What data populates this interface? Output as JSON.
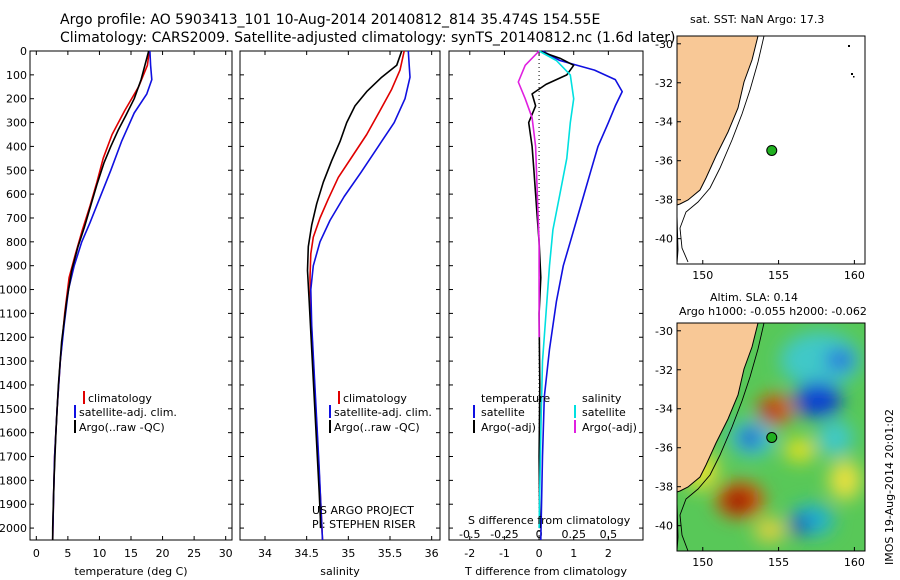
{
  "header": {
    "line1": "Argo profile: AO 5903413_101 10-Aug-2014 20140812_814 35.474S 154.55E",
    "line2": "Climatology: CARS2009. Satellite-adjusted climatology: synTS_20140812.nc (1.6d later)"
  },
  "colors": {
    "climatology": "#e00000",
    "satellite": "#1010e0",
    "argo": "#000000",
    "s_sat": "#00e0e0",
    "s_argo": "#e020e0",
    "land": "#f8c896",
    "argo_dot": "#20b020"
  },
  "depth_ticks": [
    "0",
    "100",
    "200",
    "300",
    "400",
    "500",
    "600",
    "700",
    "800",
    "900",
    "1000",
    "1100",
    "1200",
    "1300",
    "1400",
    "1500",
    "1600",
    "1700",
    "1800",
    "1900",
    "2000"
  ],
  "chart_data": [
    {
      "type": "line",
      "xlabel": "temperature (deg C)",
      "ylim": [
        2050,
        0
      ],
      "xlim": [
        -1,
        31
      ],
      "xticks": [
        "0",
        "5",
        "10",
        "15",
        "20",
        "25",
        "30"
      ],
      "legend": [
        "climatology",
        "satellite-adj. clim.",
        "Argo(..raw -QC)"
      ],
      "series": [
        {
          "name": "climatology",
          "points": [
            [
              17.9,
              0
            ],
            [
              17.6,
              60
            ],
            [
              16.2,
              150
            ],
            [
              14.0,
              250
            ],
            [
              12.0,
              350
            ],
            [
              10.6,
              450
            ],
            [
              9.6,
              550
            ],
            [
              8.5,
              650
            ],
            [
              7.3,
              750
            ],
            [
              6.2,
              850
            ],
            [
              5.2,
              950
            ],
            [
              4.5,
              1100
            ],
            [
              3.8,
              1300
            ],
            [
              3.3,
              1500
            ],
            [
              2.9,
              1700
            ],
            [
              2.7,
              1900
            ],
            [
              2.6,
              2050
            ]
          ]
        },
        {
          "name": "satellite-adj. clim.",
          "points": [
            [
              18.0,
              0
            ],
            [
              18.1,
              60
            ],
            [
              18.3,
              120
            ],
            [
              17.5,
              180
            ],
            [
              15.5,
              260
            ],
            [
              13.5,
              380
            ],
            [
              11.8,
              500
            ],
            [
              10.0,
              620
            ],
            [
              8.5,
              720
            ],
            [
              7.2,
              800
            ],
            [
              6.0,
              900
            ],
            [
              5.1,
              1000
            ],
            [
              4.4,
              1150
            ],
            [
              3.8,
              1300
            ],
            [
              3.3,
              1500
            ],
            [
              2.9,
              1700
            ],
            [
              2.7,
              1900
            ],
            [
              2.6,
              2050
            ]
          ]
        },
        {
          "name": "Argo(..raw -QC)",
          "points": [
            [
              17.8,
              0
            ],
            [
              17.2,
              60
            ],
            [
              16.6,
              120
            ],
            [
              15.5,
              200
            ],
            [
              14.2,
              270
            ],
            [
              13.0,
              330
            ],
            [
              11.8,
              400
            ],
            [
              10.7,
              470
            ],
            [
              9.6,
              560
            ],
            [
              8.6,
              650
            ],
            [
              7.6,
              740
            ],
            [
              6.6,
              820
            ],
            [
              5.6,
              920
            ],
            [
              4.8,
              1050
            ],
            [
              4.0,
              1220
            ],
            [
              3.5,
              1400
            ],
            [
              3.1,
              1600
            ],
            [
              2.8,
              1800
            ],
            [
              2.6,
              2000
            ],
            [
              2.6,
              2050
            ]
          ]
        }
      ]
    },
    {
      "type": "line",
      "xlabel": "salinity",
      "ylim": [
        2050,
        0
      ],
      "xlim": [
        33.7,
        36.1
      ],
      "xticks": [
        "34",
        "34.5",
        "35",
        "35.5",
        "36"
      ],
      "legend": [
        "climatology",
        "satellite-adj. clim.",
        "Argo(..raw -QC)"
      ],
      "annotation": [
        "US ARGO PROJECT",
        "PI: STEPHEN RISER"
      ],
      "series": [
        {
          "name": "climatology",
          "points": [
            [
              35.67,
              0
            ],
            [
              35.62,
              80
            ],
            [
              35.52,
              160
            ],
            [
              35.38,
              250
            ],
            [
              35.22,
              350
            ],
            [
              35.05,
              440
            ],
            [
              34.88,
              530
            ],
            [
              34.76,
              620
            ],
            [
              34.66,
              700
            ],
            [
              34.58,
              780
            ],
            [
              34.55,
              850
            ],
            [
              34.54,
              950
            ],
            [
              34.55,
              1100
            ],
            [
              34.58,
              1300
            ],
            [
              34.61,
              1500
            ],
            [
              34.64,
              1700
            ],
            [
              34.67,
              1900
            ],
            [
              34.69,
              2050
            ]
          ]
        },
        {
          "name": "satellite-adj. clim.",
          "points": [
            [
              35.72,
              0
            ],
            [
              35.73,
              60
            ],
            [
              35.74,
              110
            ],
            [
              35.68,
              200
            ],
            [
              35.55,
              300
            ],
            [
              35.36,
              400
            ],
            [
              35.15,
              510
            ],
            [
              34.95,
              610
            ],
            [
              34.78,
              710
            ],
            [
              34.66,
              800
            ],
            [
              34.58,
              900
            ],
            [
              34.55,
              1000
            ],
            [
              34.56,
              1150
            ],
            [
              34.59,
              1350
            ],
            [
              34.62,
              1550
            ],
            [
              34.65,
              1750
            ],
            [
              34.67,
              1900
            ],
            [
              34.69,
              2050
            ]
          ]
        },
        {
          "name": "Argo(..raw -QC)",
          "points": [
            [
              35.64,
              0
            ],
            [
              35.58,
              60
            ],
            [
              35.4,
              110
            ],
            [
              35.22,
              170
            ],
            [
              35.08,
              230
            ],
            [
              34.98,
              300
            ],
            [
              34.9,
              380
            ],
            [
              34.8,
              460
            ],
            [
              34.7,
              550
            ],
            [
              34.62,
              640
            ],
            [
              34.56,
              730
            ],
            [
              34.52,
              820
            ],
            [
              34.51,
              920
            ],
            [
              34.53,
              1050
            ],
            [
              34.56,
              1250
            ],
            [
              34.59,
              1450
            ],
            [
              34.62,
              1650
            ],
            [
              34.65,
              1850
            ],
            [
              34.67,
              2000
            ]
          ]
        }
      ]
    },
    {
      "type": "line",
      "xlabel": "T difference from climatology",
      "top_label": "S difference from climatology",
      "ylim": [
        2050,
        0
      ],
      "xlim": [
        -2.6,
        3.0
      ],
      "xticks": [
        "-2",
        "-1",
        "0",
        "1",
        "2"
      ],
      "top_ticks": [
        "-0.5",
        "-0.25",
        "0",
        "0.25",
        "0.5"
      ],
      "legend_temperature": [
        "temperature",
        "satellite",
        "Argo(-adj)"
      ],
      "legend_salinity": [
        "salinity",
        "satellite",
        "Argo(-adj)"
      ],
      "series": [
        {
          "name": "satellite",
          "points": [
            [
              0.1,
              0
            ],
            [
              0.6,
              40
            ],
            [
              1.6,
              80
            ],
            [
              2.2,
              120
            ],
            [
              2.4,
              170
            ],
            [
              2.2,
              230
            ],
            [
              2.0,
              300
            ],
            [
              1.7,
              400
            ],
            [
              1.5,
              500
            ],
            [
              1.3,
              600
            ],
            [
              1.1,
              700
            ],
            [
              0.9,
              800
            ],
            [
              0.7,
              900
            ],
            [
              0.5,
              1050
            ],
            [
              0.3,
              1250
            ],
            [
              0.15,
              1450
            ],
            [
              0.1,
              1700
            ],
            [
              0.05,
              2050
            ]
          ]
        },
        {
          "name": "Argo(-adj)",
          "points": [
            [
              0.0,
              0
            ],
            [
              0.6,
              30
            ],
            [
              1.0,
              60
            ],
            [
              0.8,
              100
            ],
            [
              0.2,
              140
            ],
            [
              -0.2,
              180
            ],
            [
              -0.1,
              230
            ],
            [
              -0.3,
              300
            ],
            [
              -0.2,
              400
            ],
            [
              -0.15,
              500
            ],
            [
              -0.1,
              600
            ],
            [
              -0.05,
              700
            ],
            [
              0.0,
              800
            ],
            [
              0.05,
              950
            ],
            [
              0.0,
              1100
            ],
            [
              0.02,
              1400
            ],
            [
              0.0,
              1700
            ],
            [
              0.02,
              2000
            ]
          ]
        },
        {
          "name": "satellite",
          "points": [
            [
              0.0,
              0
            ],
            [
              0.5,
              40
            ],
            [
              0.9,
              100
            ],
            [
              1.0,
              200
            ],
            [
              0.9,
              300
            ],
            [
              0.8,
              450
            ],
            [
              0.6,
              600
            ],
            [
              0.4,
              750
            ],
            [
              0.3,
              900
            ],
            [
              0.2,
              1100
            ],
            [
              0.1,
              1300
            ],
            [
              0.05,
              1600
            ],
            [
              0.0,
              2000
            ]
          ]
        },
        {
          "name": "Argo(-adj)",
          "points": [
            [
              0.0,
              0
            ],
            [
              -0.4,
              60
            ],
            [
              -0.6,
              130
            ],
            [
              -0.4,
              200
            ],
            [
              -0.2,
              280
            ],
            [
              -0.1,
              400
            ],
            [
              -0.05,
              600
            ],
            [
              0.0,
              800
            ],
            [
              0.0,
              1000
            ],
            [
              0.0,
              1200
            ]
          ]
        }
      ]
    },
    {
      "type": "scatter",
      "title": "sat. SST: NaN Argo: 17.3",
      "xticks": [
        "150",
        "155",
        "160"
      ],
      "yticks": [
        "-30",
        "-32",
        "-34",
        "-36",
        "-38",
        "-40"
      ],
      "xlim": [
        148.3,
        160.7
      ],
      "ylim": [
        -41.3,
        -29.6
      ],
      "points": [
        {
          "x": 154.55,
          "y": -35.474
        }
      ]
    },
    {
      "type": "heatmap",
      "title1": "Altim. SLA: 0.14",
      "title2": "Argo h1000: -0.055 h2000: -0.062",
      "xticks": [
        "150",
        "155",
        "160"
      ],
      "yticks": [
        "-30",
        "-32",
        "-34",
        "-36",
        "-38",
        "-40"
      ],
      "xlim": [
        148.3,
        160.7
      ],
      "ylim": [
        -41.3,
        -29.6
      ],
      "points": [
        {
          "x": 154.55,
          "y": -35.474
        }
      ],
      "side_label": "IMOS 19-Aug-2014 20:01:02"
    }
  ]
}
